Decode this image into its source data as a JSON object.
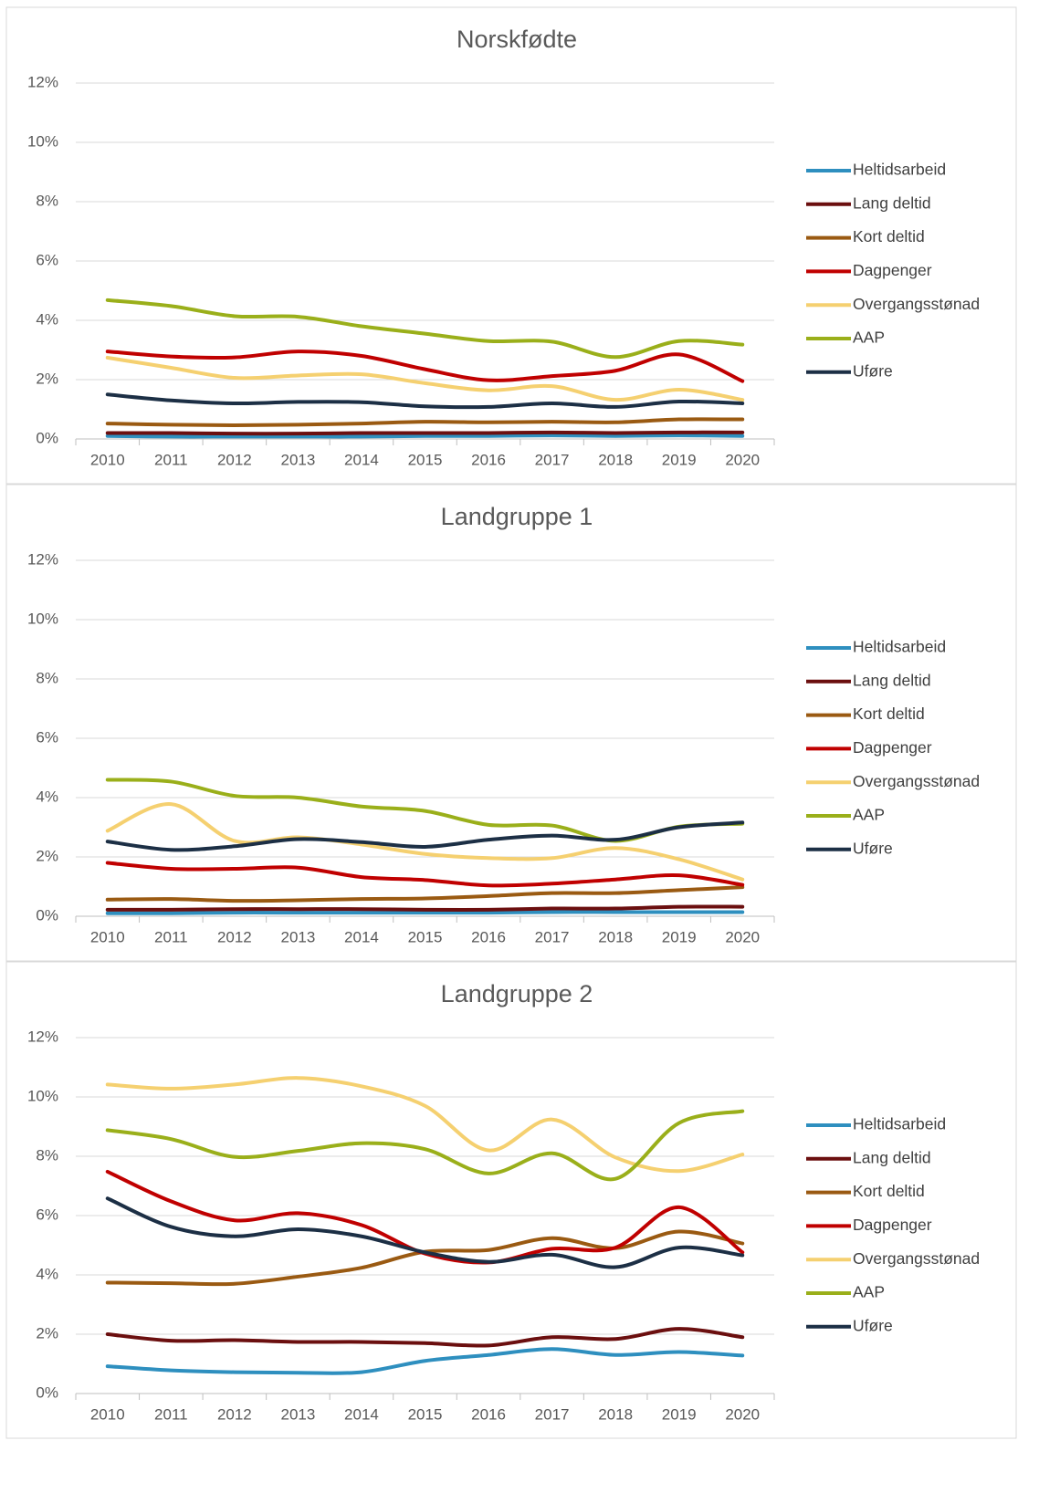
{
  "chart_data": [
    {
      "type": "line",
      "title": "Norskfødte",
      "smooth": true,
      "grid": true,
      "legend": "right",
      "categories": [
        "2010",
        "2011",
        "2012",
        "2013",
        "2014",
        "2015",
        "2016",
        "2017",
        "2018",
        "2019",
        "2020"
      ],
      "ylim": [
        0,
        12
      ],
      "yticks": [
        {
          "value": 0,
          "label": "0%"
        },
        {
          "value": 2,
          "label": "2%"
        },
        {
          "value": 4,
          "label": "4%"
        },
        {
          "value": 6,
          "label": "6%"
        },
        {
          "value": 8,
          "label": "8%"
        },
        {
          "value": 10,
          "label": "10%"
        },
        {
          "value": 12,
          "label": "12%"
        }
      ],
      "series": [
        {
          "name": "Heltidsarbeid",
          "color": "#2e8fbf",
          "values": [
            0.1,
            0.08,
            0.08,
            0.08,
            0.08,
            0.1,
            0.1,
            0.12,
            0.1,
            0.12,
            0.1
          ]
        },
        {
          "name": "Lang deltid",
          "color": "#6b0f0f",
          "values": [
            0.2,
            0.2,
            0.18,
            0.18,
            0.2,
            0.2,
            0.2,
            0.22,
            0.2,
            0.22,
            0.22
          ]
        },
        {
          "name": "Kort deltid",
          "color": "#9a5a12",
          "values": [
            0.52,
            0.48,
            0.46,
            0.48,
            0.52,
            0.58,
            0.56,
            0.58,
            0.56,
            0.66,
            0.66
          ]
        },
        {
          "name": "Dagpenger",
          "color": "#c00000",
          "values": [
            2.95,
            2.78,
            2.75,
            2.95,
            2.8,
            2.35,
            1.98,
            2.12,
            2.3,
            2.85,
            1.95
          ]
        },
        {
          "name": "Overgangsstønad",
          "color": "#f5d070",
          "values": [
            2.74,
            2.4,
            2.06,
            2.14,
            2.18,
            1.88,
            1.64,
            1.78,
            1.32,
            1.66,
            1.32
          ]
        },
        {
          "name": "AAP",
          "color": "#9aaf1a",
          "values": [
            4.68,
            4.48,
            4.14,
            4.12,
            3.8,
            3.55,
            3.3,
            3.28,
            2.76,
            3.3,
            3.18
          ]
        },
        {
          "name": "Uføre",
          "color": "#1c2f45",
          "values": [
            1.5,
            1.3,
            1.2,
            1.25,
            1.24,
            1.1,
            1.08,
            1.2,
            1.08,
            1.26,
            1.2
          ]
        }
      ]
    },
    {
      "type": "line",
      "title": "Landgruppe 1",
      "smooth": true,
      "grid": true,
      "legend": "right",
      "categories": [
        "2010",
        "2011",
        "2012",
        "2013",
        "2014",
        "2015",
        "2016",
        "2017",
        "2018",
        "2019",
        "2020"
      ],
      "ylim": [
        0,
        12
      ],
      "yticks": [
        {
          "value": 0,
          "label": "0%"
        },
        {
          "value": 2,
          "label": "2%"
        },
        {
          "value": 4,
          "label": "4%"
        },
        {
          "value": 6,
          "label": "6%"
        },
        {
          "value": 8,
          "label": "8%"
        },
        {
          "value": 10,
          "label": "10%"
        },
        {
          "value": 12,
          "label": "12%"
        }
      ],
      "series": [
        {
          "name": "Heltidsarbeid",
          "color": "#2e8fbf",
          "values": [
            0.1,
            0.1,
            0.12,
            0.12,
            0.12,
            0.12,
            0.12,
            0.14,
            0.14,
            0.14,
            0.14
          ]
        },
        {
          "name": "Lang deltid",
          "color": "#6b0f0f",
          "values": [
            0.22,
            0.22,
            0.24,
            0.24,
            0.24,
            0.22,
            0.22,
            0.26,
            0.26,
            0.32,
            0.32
          ]
        },
        {
          "name": "Kort deltid",
          "color": "#9a5a12",
          "values": [
            0.56,
            0.58,
            0.52,
            0.54,
            0.58,
            0.6,
            0.68,
            0.78,
            0.78,
            0.88,
            0.98
          ]
        },
        {
          "name": "Dagpenger",
          "color": "#c00000",
          "values": [
            1.8,
            1.6,
            1.6,
            1.64,
            1.32,
            1.22,
            1.04,
            1.1,
            1.24,
            1.38,
            1.06
          ]
        },
        {
          "name": "Overgangsstønad",
          "color": "#f5d070",
          "values": [
            2.88,
            3.78,
            2.54,
            2.66,
            2.42,
            2.1,
            1.96,
            1.96,
            2.3,
            1.92,
            1.24
          ]
        },
        {
          "name": "AAP",
          "color": "#9aaf1a",
          "values": [
            4.6,
            4.54,
            4.06,
            4.0,
            3.7,
            3.55,
            3.08,
            3.06,
            2.54,
            3.02,
            3.12
          ]
        },
        {
          "name": "Uføre",
          "color": "#1c2f45",
          "values": [
            2.52,
            2.24,
            2.36,
            2.6,
            2.5,
            2.34,
            2.58,
            2.72,
            2.58,
            3.0,
            3.16
          ]
        }
      ]
    },
    {
      "type": "line",
      "title": "Landgruppe 2",
      "smooth": true,
      "grid": true,
      "legend": "right",
      "categories": [
        "2010",
        "2011",
        "2012",
        "2013",
        "2014",
        "2015",
        "2016",
        "2017",
        "2018",
        "2019",
        "2020"
      ],
      "ylim": [
        0,
        12
      ],
      "yticks": [
        {
          "value": 0,
          "label": "0%"
        },
        {
          "value": 2,
          "label": "2%"
        },
        {
          "value": 4,
          "label": "4%"
        },
        {
          "value": 6,
          "label": "6%"
        },
        {
          "value": 8,
          "label": "8%"
        },
        {
          "value": 10,
          "label": "10%"
        },
        {
          "value": 12,
          "label": "12%"
        }
      ],
      "series": [
        {
          "name": "Heltidsarbeid",
          "color": "#2e8fbf",
          "values": [
            0.92,
            0.78,
            0.72,
            0.7,
            0.72,
            1.1,
            1.3,
            1.5,
            1.3,
            1.4,
            1.28
          ]
        },
        {
          "name": "Lang deltid",
          "color": "#6b0f0f",
          "values": [
            2.0,
            1.78,
            1.8,
            1.74,
            1.74,
            1.7,
            1.62,
            1.9,
            1.84,
            2.18,
            1.9
          ]
        },
        {
          "name": "Kort deltid",
          "color": "#9a5a12",
          "values": [
            3.74,
            3.72,
            3.7,
            3.94,
            4.24,
            4.78,
            4.84,
            5.24,
            4.9,
            5.46,
            5.06
          ]
        },
        {
          "name": "Dagpenger",
          "color": "#c00000",
          "values": [
            7.48,
            6.48,
            5.84,
            6.08,
            5.68,
            4.72,
            4.42,
            4.88,
            4.92,
            6.28,
            4.76
          ]
        },
        {
          "name": "Overgangsstønad",
          "color": "#f5d070",
          "values": [
            10.42,
            10.28,
            10.42,
            10.64,
            10.36,
            9.7,
            8.2,
            9.24,
            7.96,
            7.5,
            8.06
          ]
        },
        {
          "name": "AAP",
          "color": "#9aaf1a",
          "values": [
            8.88,
            8.58,
            7.98,
            8.18,
            8.44,
            8.24,
            7.42,
            8.1,
            7.24,
            9.12,
            9.52
          ]
        },
        {
          "name": "Uføre",
          "color": "#1c2f45",
          "values": [
            6.58,
            5.62,
            5.3,
            5.54,
            5.3,
            4.76,
            4.44,
            4.68,
            4.26,
            4.92,
            4.66
          ]
        }
      ]
    }
  ]
}
